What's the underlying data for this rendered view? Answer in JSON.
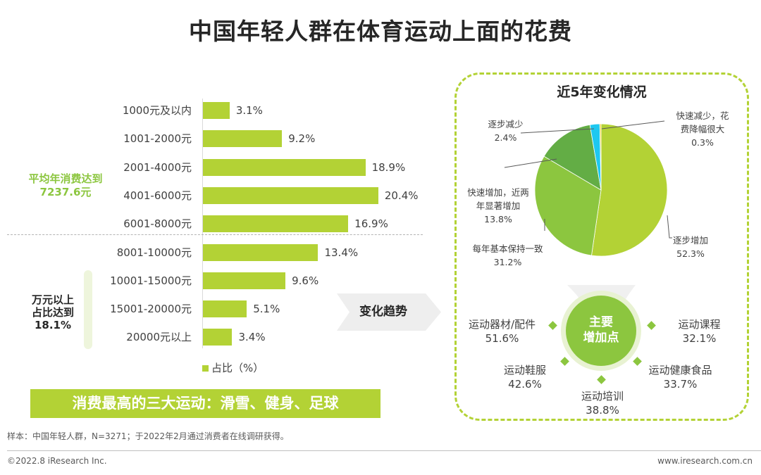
{
  "title": "中国年轻人群在体育运动上面的花费",
  "chart_data": [
    {
      "type": "bar",
      "orientation": "horizontal",
      "categories": [
        "1000元及以内",
        "1001-2000元",
        "2001-4000元",
        "4001-6000元",
        "6001-8000元",
        "8001-10000元",
        "10001-15000元",
        "15001-20000元",
        "20000元以上"
      ],
      "series": [
        {
          "name": "占比（%）",
          "values": [
            3.1,
            9.2,
            18.9,
            20.4,
            16.9,
            13.4,
            9.6,
            5.1,
            3.4
          ]
        }
      ],
      "value_labels": [
        "3.1%",
        "9.2%",
        "18.9%",
        "20.4%",
        "16.9%",
        "13.4%",
        "9.6%",
        "5.1%",
        "3.4%"
      ],
      "legend": "bottom",
      "color": "#b3d235"
    },
    {
      "type": "pie",
      "title": "近5年变化情况",
      "slices": [
        {
          "label": "逐步增加",
          "value": 52.3,
          "text": "52.3%",
          "color": "#b3d235"
        },
        {
          "label": "每年基本保持一致",
          "value": 31.2,
          "text": "31.2%",
          "color": "#8cc63f"
        },
        {
          "label": "快速增加，近两年显著增加",
          "line1": "快速增加，近两",
          "line2": "年显著增加",
          "value": 13.8,
          "text": "13.8%",
          "color": "#63ad45"
        },
        {
          "label": "逐步减少",
          "value": 2.4,
          "text": "2.4%",
          "color": "#1ec8f0"
        },
        {
          "label": "快速减少，花费降幅很大",
          "line1": "快速减少，花",
          "line2": "费降幅很大",
          "value": 0.3,
          "text": "0.3%",
          "color": "#f5c400"
        }
      ]
    }
  ],
  "notes": {
    "avg_line1": "平均年消费达到",
    "avg_line2": "7237.6元",
    "over_line1": "万元以上",
    "over_line2": "占比达到",
    "over_line3": "18.1%"
  },
  "banner": "消费最高的三大运动：滑雪、健身、足球",
  "trend_label": "变化趋势",
  "hub": {
    "line1": "主要",
    "line2": "增加点"
  },
  "increase_points": [
    {
      "name": "运动器材/配件",
      "value": "51.6%"
    },
    {
      "name": "运动课程",
      "value": "32.1%"
    },
    {
      "name": "运动鞋服",
      "value": "42.6%"
    },
    {
      "name": "运动健康食品",
      "value": "33.7%"
    },
    {
      "name": "运动培训",
      "value": "38.8%"
    }
  ],
  "footnote": "样本：中国年轻人群，N=3271；于2022年2月通过消费者在线调研获得。",
  "copyright": "©2022.8 iResearch Inc.",
  "website": "www.iresearch.com.cn"
}
